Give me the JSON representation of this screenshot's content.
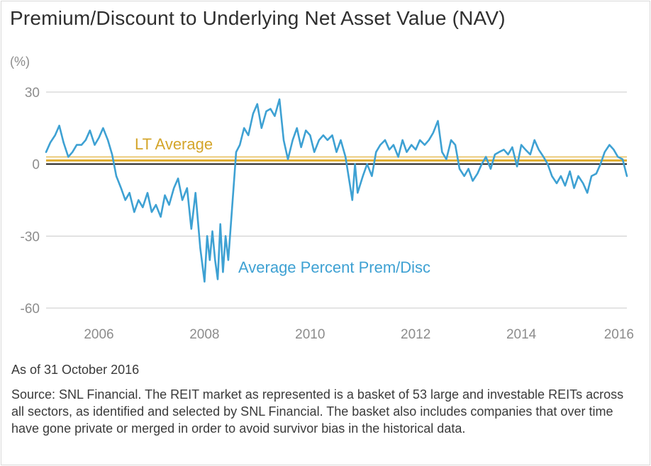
{
  "title": "Premium/Discount to Underlying Net Asset Value (NAV)",
  "as_of": "As of 31 October 2016",
  "source": "Source: SNL Financial. The REIT market as represented is a basket of 53 large and investable REITs across all sectors, as identified and selected by SNL Financial. The basket also includes companies that over time have gone private or merged in order to avoid survivor bias in the historical data.",
  "colors": {
    "series": "#3ea1d3",
    "lt_average": "#e0ad2e",
    "zero_line": "#1a1a1a",
    "grid": "#c8c8c8",
    "axis_text": "#8c8c8c"
  },
  "chart_data": {
    "type": "line",
    "title": "Premium/Discount to Underlying Net Asset Value (NAV)",
    "ylabel": "(%)",
    "xlabel": "",
    "ylim": [
      -60,
      30
    ],
    "xlim": [
      2005.0,
      2016.0
    ],
    "yticks": [
      30,
      0,
      -30,
      -60
    ],
    "yticks_labels": [
      "30",
      "0",
      "-30",
      "-60"
    ],
    "xticks": [
      2006,
      2008,
      2010,
      2012,
      2014,
      2016
    ],
    "xticks_labels": [
      "2006",
      "2008",
      "2010",
      "2012",
      "2014",
      "2016"
    ],
    "grid": true,
    "reference_lines": [
      {
        "name": "LT Average",
        "value": 1.5
      },
      {
        "name": "",
        "value": 0
      }
    ],
    "series": [
      {
        "name": "Average Percent Prem/Disc",
        "x": [
          2005.0,
          2005.08,
          2005.17,
          2005.25,
          2005.33,
          2005.42,
          2005.5,
          2005.58,
          2005.67,
          2005.75,
          2005.83,
          2005.92,
          2006.0,
          2006.08,
          2006.17,
          2006.25,
          2006.33,
          2006.42,
          2006.5,
          2006.58,
          2006.67,
          2006.75,
          2006.83,
          2006.92,
          2007.0,
          2007.08,
          2007.17,
          2007.25,
          2007.33,
          2007.42,
          2007.5,
          2007.58,
          2007.67,
          2007.75,
          2007.83,
          2007.92,
          2008.0,
          2008.05,
          2008.1,
          2008.15,
          2008.2,
          2008.25,
          2008.3,
          2008.35,
          2008.4,
          2008.45,
          2008.5,
          2008.55,
          2008.6,
          2008.67,
          2008.75,
          2008.83,
          2008.92,
          2009.0,
          2009.08,
          2009.17,
          2009.25,
          2009.33,
          2009.42,
          2009.5,
          2009.58,
          2009.67,
          2009.75,
          2009.83,
          2009.92,
          2010.0,
          2010.08,
          2010.17,
          2010.25,
          2010.33,
          2010.42,
          2010.5,
          2010.58,
          2010.67,
          2010.75,
          2010.8,
          2010.85,
          2010.9,
          2011.0,
          2011.08,
          2011.17,
          2011.25,
          2011.33,
          2011.42,
          2011.5,
          2011.58,
          2011.67,
          2011.75,
          2011.83,
          2011.92,
          2012.0,
          2012.08,
          2012.17,
          2012.25,
          2012.33,
          2012.42,
          2012.5,
          2012.58,
          2012.67,
          2012.75,
          2012.83,
          2012.92,
          2013.0,
          2013.08,
          2013.17,
          2013.25,
          2013.33,
          2013.42,
          2013.5,
          2013.58,
          2013.67,
          2013.75,
          2013.83,
          2013.92,
          2014.0,
          2014.08,
          2014.17,
          2014.25,
          2014.33,
          2014.42,
          2014.5,
          2014.58,
          2014.67,
          2014.75,
          2014.83,
          2014.92,
          2015.0,
          2015.08,
          2015.17,
          2015.25,
          2015.33,
          2015.42,
          2015.5,
          2015.58,
          2015.67,
          2015.75,
          2015.83,
          2015.92,
          2016.0
        ],
        "values": [
          5,
          9,
          12,
          16,
          9,
          3,
          5,
          8,
          8,
          10,
          14,
          8,
          11,
          15,
          10,
          4,
          -5,
          -10,
          -15,
          -12,
          -20,
          -15,
          -18,
          -12,
          -20,
          -17,
          -22,
          -13,
          -17,
          -10,
          -6,
          -15,
          -10,
          -27,
          -12,
          -35,
          -49,
          -30,
          -40,
          -28,
          -40,
          -48,
          -25,
          -45,
          -30,
          -40,
          -25,
          -10,
          5,
          8,
          15,
          12,
          21,
          25,
          15,
          22,
          23,
          20,
          27,
          10,
          2,
          10,
          15,
          7,
          14,
          12,
          5,
          10,
          12,
          10,
          12,
          5,
          10,
          3,
          -8,
          -15,
          0,
          -12,
          -5,
          0,
          -5,
          5,
          8,
          10,
          6,
          8,
          3,
          10,
          5,
          8,
          6,
          10,
          8,
          10,
          13,
          18,
          5,
          2,
          10,
          8,
          -2,
          -5,
          -2,
          -7,
          -4,
          0,
          3,
          -2,
          4,
          5,
          6,
          4,
          7,
          -1,
          8,
          6,
          4,
          10,
          6,
          3,
          0,
          -5,
          -8,
          -5,
          -9,
          -3,
          -10,
          -5,
          -8,
          -12,
          -5,
          -4,
          0,
          5,
          8,
          6,
          3,
          2,
          -5
        ]
      }
    ],
    "annotations": [
      "LT Average",
      "Average Percent Prem/Disc"
    ]
  }
}
